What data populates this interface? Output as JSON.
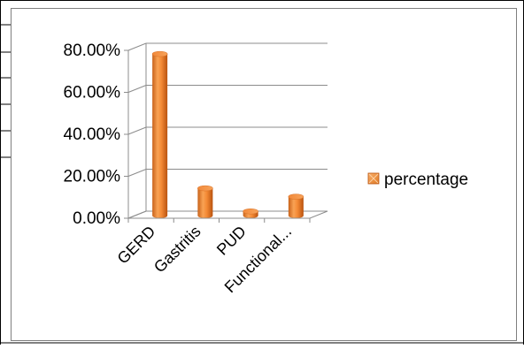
{
  "chart_data": {
    "type": "bar",
    "categories": [
      "GERD",
      "Gastritis",
      "PUD",
      "Functional..."
    ],
    "series": [
      {
        "name": "percentage",
        "values": [
          0.77,
          0.13,
          0.02,
          0.09
        ],
        "color": "#F79646"
      }
    ],
    "y_tick_labels": [
      "0.00%",
      "20.00%",
      "40.00%",
      "60.00%",
      "80.00%"
    ],
    "y_ticks": [
      0,
      0.2,
      0.4,
      0.6,
      0.8
    ],
    "ylim": [
      0,
      0.8
    ],
    "grid": true,
    "legend_position": "right",
    "style": "3d-cylinder"
  }
}
